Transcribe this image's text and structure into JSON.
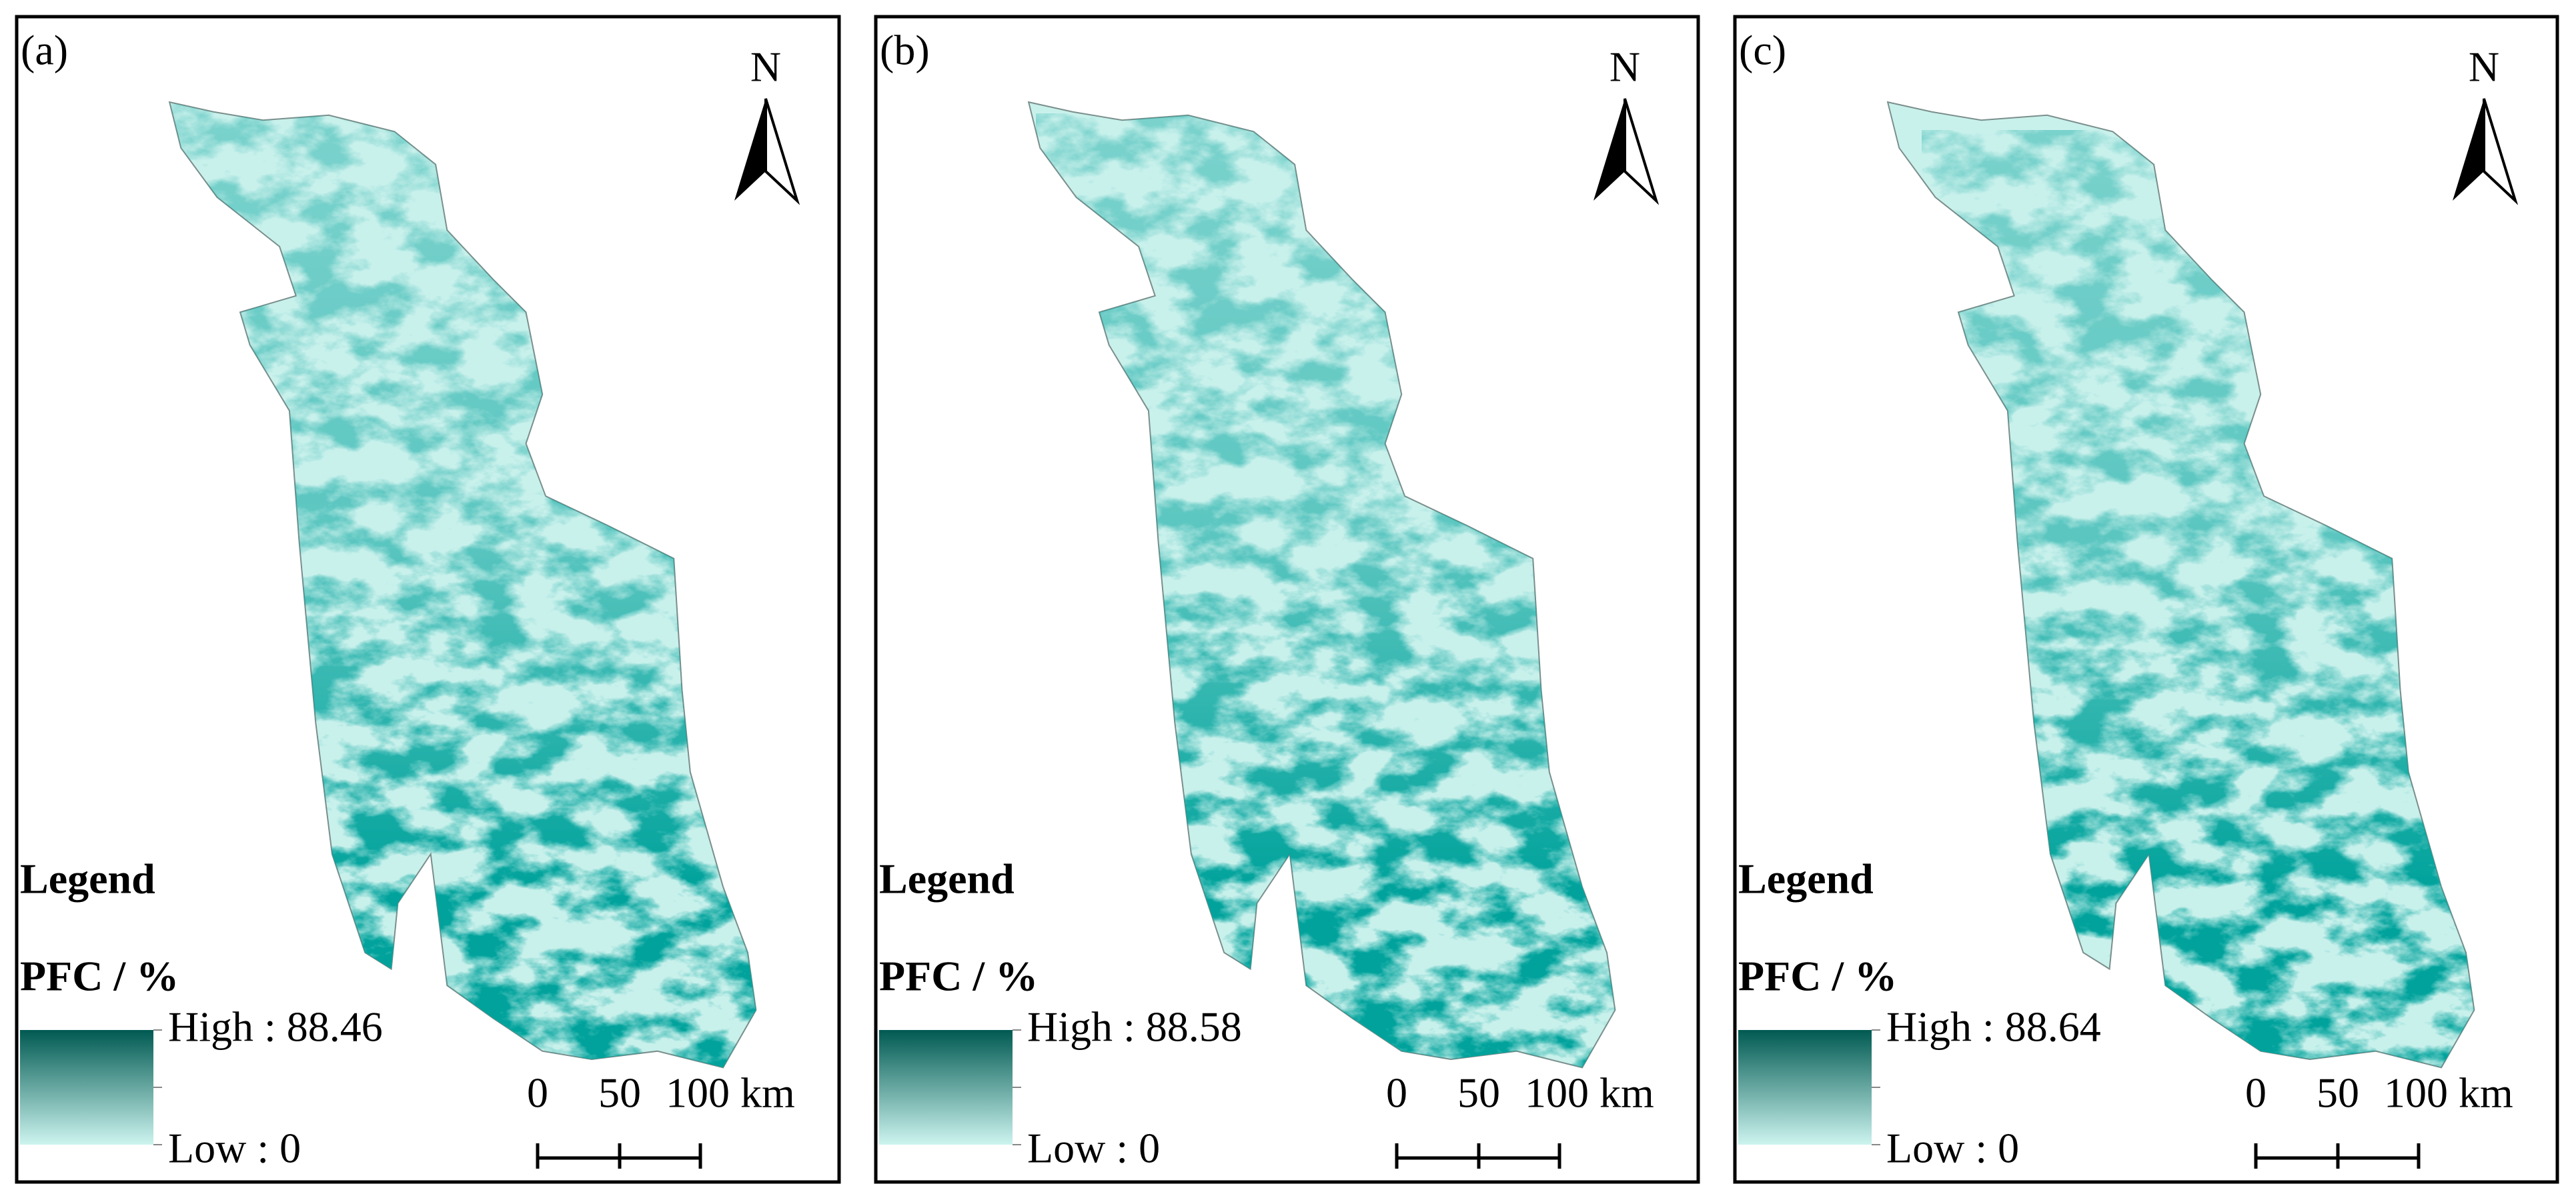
{
  "panels": [
    {
      "label": "(a)",
      "north": "N",
      "legend_title": "Legend",
      "field": "PFC / %",
      "high": "High : 88.46",
      "low": "Low : 0",
      "scale": [
        "0",
        "50",
        "100 km"
      ]
    },
    {
      "label": "(b)",
      "north": "N",
      "legend_title": "Legend",
      "field": "PFC / %",
      "high": "High : 88.58",
      "low": "Low : 0",
      "scale": [
        "0",
        "50",
        "100 km"
      ]
    },
    {
      "label": "(c)",
      "north": "N",
      "legend_title": "Legend",
      "field": "PFC / %",
      "high": "High : 88.64",
      "low": "Low : 0",
      "scale": [
        "0",
        "50",
        "100 km"
      ]
    }
  ]
}
